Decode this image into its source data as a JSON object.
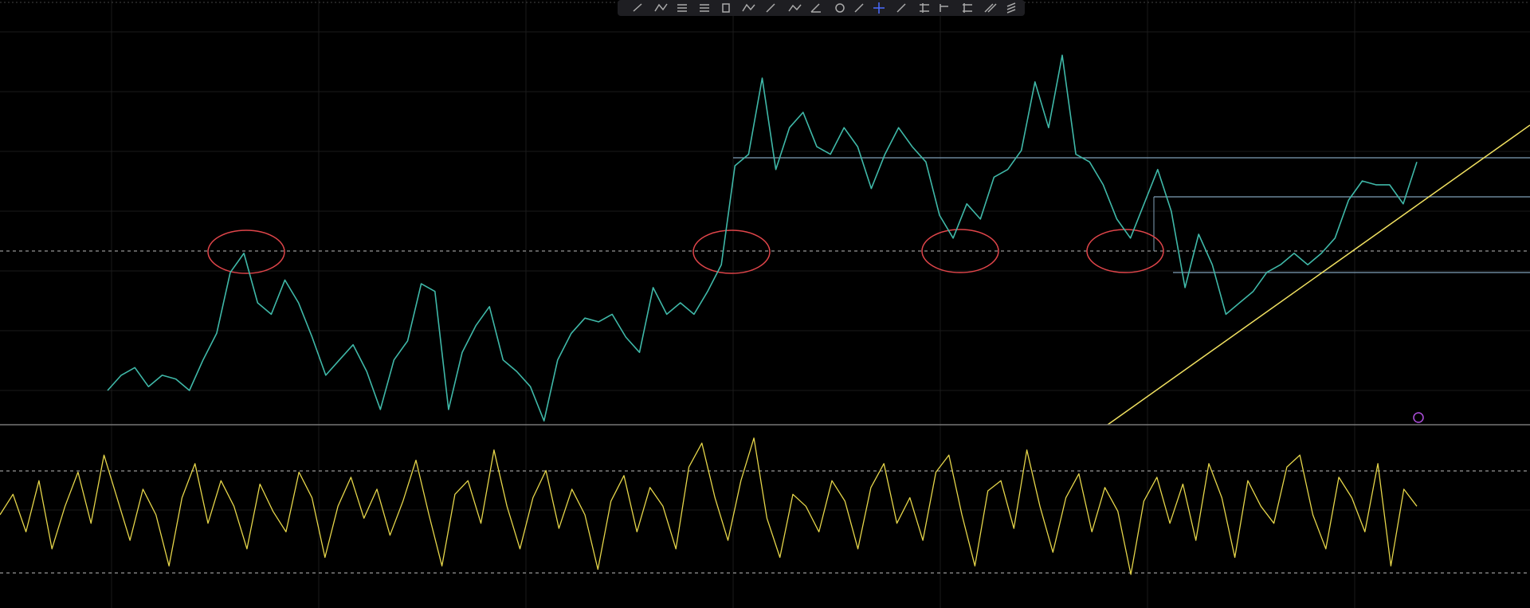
{
  "chart_data": [
    {
      "type": "line",
      "series": [
        {
          "color": "#3fb8a8",
          "values": [
            9,
            13,
            15,
            10,
            13,
            12,
            9,
            17,
            24,
            40,
            45,
            32,
            29,
            38,
            32,
            23,
            13,
            17,
            21,
            14,
            4,
            17,
            22,
            37,
            35,
            4,
            19,
            26,
            31,
            17,
            14,
            10,
            1,
            17,
            24,
            28,
            27,
            29,
            23,
            19,
            36,
            29,
            32,
            29,
            35,
            42,
            68,
            71,
            91,
            67,
            78,
            82,
            73,
            71,
            78,
            73,
            62,
            71,
            78,
            73,
            69,
            55,
            49,
            58,
            54,
            65,
            67,
            72,
            90,
            78,
            97,
            71,
            69,
            63,
            54,
            49,
            58,
            67,
            56,
            36,
            50,
            42,
            29,
            32,
            35,
            40,
            42,
            45,
            42,
            45,
            49,
            59,
            64,
            63,
            63,
            58,
            69
          ]
        }
      ],
      "ylim": [
        0,
        100
      ]
    },
    {
      "type": "line",
      "series": [
        {
          "color": "#e6d64a",
          "values": [
            50,
            62,
            40,
            70,
            30,
            55,
            75,
            45,
            85,
            60,
            35,
            65,
            50,
            20,
            60,
            80,
            45,
            70,
            55,
            30,
            68,
            52,
            40,
            75,
            60,
            25,
            55,
            72,
            48,
            65,
            38,
            58,
            82,
            50,
            20,
            62,
            70,
            45,
            88,
            55,
            30,
            60,
            76,
            42,
            65,
            50,
            18,
            58,
            73,
            40,
            66,
            55,
            30,
            78,
            92,
            60,
            35,
            70,
            95,
            48,
            25,
            62,
            55,
            40,
            70,
            58,
            30,
            66,
            80,
            45,
            60,
            35,
            75,
            85,
            50,
            20,
            64,
            70,
            42,
            88,
            55,
            28,
            60,
            74,
            40,
            66,
            52,
            15,
            58,
            72,
            45,
            68,
            35,
            80,
            60,
            25,
            70,
            55,
            45,
            78,
            85,
            50,
            30,
            72,
            60,
            40,
            80,
            20,
            65,
            55
          ]
        }
      ],
      "ylim": [
        0,
        100
      ]
    }
  ]
}
